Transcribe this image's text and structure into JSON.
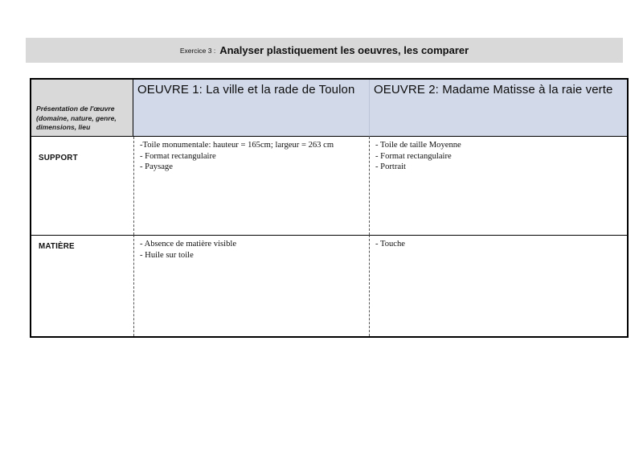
{
  "title_bar": {
    "prefix": "Exercice 3 :",
    "title": "Analyser plastiquement les oeuvres, les comparer"
  },
  "table": {
    "corner_header": "Présentation de l'œuvre (domaine, nature, genre, dimensions, lieu",
    "columns": [
      {
        "label": "OEUVRE 1: La ville et la rade de Toulon"
      },
      {
        "label": "OEUVRE 2: Madame Matisse à la raie verte"
      }
    ],
    "rows": [
      {
        "label": "SUPPORT",
        "oeuvre1": [
          "-Toile monumentale: hauteur = 165cm; largeur = 263 cm",
          "- Format rectangulaire",
          "- Paysage"
        ],
        "oeuvre2": [
          "- Toile de taille Moyenne",
          "- Format rectangulaire",
          "- Portrait"
        ]
      },
      {
        "label": "MATIÈRE",
        "oeuvre1": [
          "- Absence de matière visible",
          "- Huile sur toile"
        ],
        "oeuvre2": [
          "- Touche"
        ]
      }
    ]
  },
  "colors": {
    "title_bar_fill": "#d9d9d9",
    "corner_fill": "#d9d9d9",
    "header_fill": "#d2d9e8",
    "border": "#000000"
  }
}
